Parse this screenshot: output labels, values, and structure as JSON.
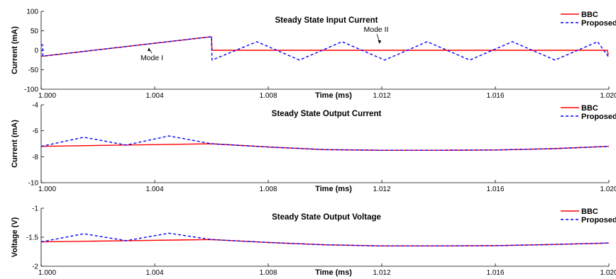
{
  "chart_data": [
    {
      "type": "line",
      "title": "Steady State Input Current",
      "xlabel": "Time (ms)",
      "ylabel": "Current (mA)",
      "xlim": [
        1.0,
        1.02
      ],
      "ylim": [
        -100,
        100
      ],
      "xticks": [
        "1.000",
        "1.004",
        "1.008",
        "1.012",
        "1.016",
        "1.020"
      ],
      "yticks": [
        "100",
        "50",
        "0",
        "-50",
        "-100"
      ],
      "grid": false,
      "legend_position": "top-right",
      "annotations": [
        "Mode I",
        "Mode II"
      ],
      "series": [
        {
          "name": "BBC",
          "color": "#ff0000",
          "style": "solid",
          "x": [
            1.0,
            1.00005,
            1.00006,
            1.006,
            1.00602,
            1.01995,
            1.01997,
            1.02
          ],
          "y": [
            -15,
            -15,
            -15,
            35,
            0,
            0,
            -10,
            -10
          ]
        },
        {
          "name": "Proposed",
          "color": "#0000ff",
          "style": "dashed",
          "x": [
            1.0,
            1.00005,
            1.00006,
            1.006,
            1.00602,
            1.0076,
            1.0091,
            1.0106,
            1.0121,
            1.0136,
            1.0151,
            1.0166,
            1.0181,
            1.0196,
            1.01997,
            1.02
          ],
          "y": [
            14,
            14,
            -15,
            35,
            -25,
            22,
            -25,
            22,
            -25,
            22,
            -25,
            22,
            -25,
            22,
            -15,
            -15
          ]
        }
      ]
    },
    {
      "type": "line",
      "title": "Steady State Output Current",
      "xlabel": "Time (ms)",
      "ylabel": "Current (mA)",
      "xlim": [
        1.0,
        1.02
      ],
      "ylim": [
        -10,
        -4
      ],
      "xticks": [
        "1.000",
        "1.004",
        "1.008",
        "1.012",
        "1.016",
        "1.020"
      ],
      "yticks": [
        "-4",
        "-6",
        "-8",
        "-10"
      ],
      "grid": false,
      "legend_position": "top-right",
      "series": [
        {
          "name": "BBC",
          "color": "#ff0000",
          "style": "solid",
          "x": [
            1.0,
            1.003,
            1.006,
            1.008,
            1.01,
            1.012,
            1.014,
            1.016,
            1.018,
            1.02
          ],
          "y": [
            -7.2,
            -7.1,
            -7.0,
            -7.25,
            -7.45,
            -7.5,
            -7.5,
            -7.48,
            -7.38,
            -7.2
          ]
        },
        {
          "name": "Proposed",
          "color": "#0000ff",
          "style": "dashed",
          "x": [
            1.0,
            1.0015,
            1.003,
            1.0045,
            1.006,
            1.008,
            1.01,
            1.012,
            1.014,
            1.016,
            1.018,
            1.02
          ],
          "y": [
            -7.2,
            -6.5,
            -7.1,
            -6.4,
            -7.0,
            -7.25,
            -7.45,
            -7.5,
            -7.5,
            -7.48,
            -7.38,
            -7.2
          ]
        }
      ]
    },
    {
      "type": "line",
      "title": "Steady State Output Voltage",
      "xlabel": "Time (ms)",
      "ylabel": "Voltage (V)",
      "xlim": [
        1.0,
        1.02
      ],
      "ylim": [
        -2,
        -1
      ],
      "xticks": [
        "1.000",
        "1.004",
        "1.008",
        "1.012",
        "1.016",
        "1.020"
      ],
      "yticks": [
        "-1",
        "-1.5",
        "-2"
      ],
      "grid": false,
      "legend_position": "top-right",
      "series": [
        {
          "name": "BBC",
          "color": "#ff0000",
          "style": "solid",
          "x": [
            1.0,
            1.003,
            1.006,
            1.008,
            1.01,
            1.012,
            1.014,
            1.016,
            1.018,
            1.02
          ],
          "y": [
            -1.58,
            -1.56,
            -1.54,
            -1.59,
            -1.63,
            -1.65,
            -1.65,
            -1.645,
            -1.625,
            -1.6
          ]
        },
        {
          "name": "Proposed",
          "color": "#0000ff",
          "style": "dashed",
          "x": [
            1.0,
            1.0015,
            1.003,
            1.0045,
            1.006,
            1.008,
            1.01,
            1.012,
            1.014,
            1.016,
            1.018,
            1.02
          ],
          "y": [
            -1.58,
            -1.44,
            -1.56,
            -1.43,
            -1.54,
            -1.59,
            -1.63,
            -1.65,
            -1.65,
            -1.645,
            -1.625,
            -1.6
          ]
        }
      ]
    }
  ]
}
